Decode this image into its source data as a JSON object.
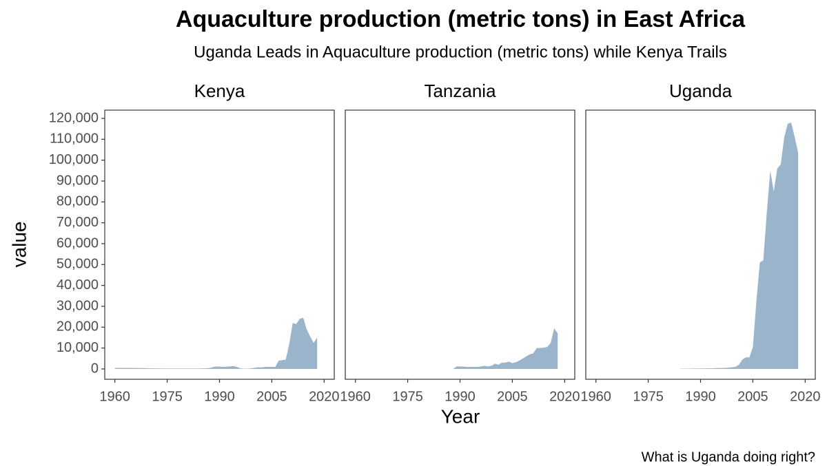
{
  "chart_data": {
    "type": "area",
    "title": "Aquaculture production (metric tons) in East Africa",
    "subtitle": "Uganda Leads in Aquaculture production (metric tons) while Kenya Trails",
    "caption": "What is Uganda doing right?",
    "x_label": "Year",
    "y_label": "value",
    "color": "#9ab4cc",
    "xlim": [
      1957.1,
      2022.9
    ],
    "ylim": [
      -4950,
      123950
    ],
    "xticks": [
      1960,
      1975,
      1990,
      2005,
      2020
    ],
    "yticks": [
      0,
      {
        "value": 10000,
        "label": "10,000"
      },
      {
        "value": 20000,
        "label": "20,000"
      },
      {
        "value": 30000,
        "label": "30,000"
      },
      {
        "value": 40000,
        "label": "40,000"
      },
      {
        "value": 50000,
        "label": "50,000"
      },
      {
        "value": 60000,
        "label": "60,000"
      },
      {
        "value": 70000,
        "label": "70,000"
      },
      {
        "value": 80000,
        "label": "80,000"
      },
      {
        "value": 90000,
        "label": "90,000"
      },
      {
        "value": 100000,
        "label": "100,000"
      },
      {
        "value": 110000,
        "label": "110,000"
      },
      {
        "value": 120000,
        "label": "120,000"
      }
    ],
    "x": [
      1960,
      1961,
      1962,
      1963,
      1964,
      1965,
      1966,
      1967,
      1968,
      1969,
      1970,
      1971,
      1972,
      1973,
      1974,
      1975,
      1976,
      1977,
      1978,
      1979,
      1980,
      1981,
      1982,
      1983,
      1984,
      1985,
      1986,
      1987,
      1988,
      1989,
      1990,
      1991,
      1992,
      1993,
      1994,
      1995,
      1996,
      1997,
      1998,
      1999,
      2000,
      2001,
      2002,
      2003,
      2004,
      2005,
      2006,
      2007,
      2008,
      2009,
      2010,
      2011,
      2012,
      2013,
      2014,
      2015,
      2016,
      2017,
      2018
    ],
    "facets": [
      {
        "name": "Kenya",
        "values": [
          500,
          500,
          500,
          500,
          500,
          450,
          450,
          400,
          400,
          350,
          300,
          300,
          250,
          250,
          200,
          200,
          200,
          200,
          200,
          200,
          200,
          200,
          200,
          200,
          200,
          300,
          300,
          400,
          800,
          1200,
          1100,
          1000,
          1100,
          1200,
          1400,
          1000,
          300,
          100,
          100,
          300,
          500,
          800,
          700,
          1000,
          1000,
          1000,
          1000,
          4000,
          4200,
          4500,
          12000,
          22000,
          21500,
          24000,
          24500,
          19000,
          15500,
          12500,
          15000
        ]
      },
      {
        "name": "Tanzania",
        "values": [
          null,
          null,
          null,
          null,
          null,
          null,
          null,
          null,
          null,
          null,
          null,
          null,
          null,
          null,
          null,
          null,
          null,
          null,
          null,
          null,
          null,
          null,
          null,
          null,
          null,
          null,
          null,
          null,
          0,
          1200,
          1200,
          1100,
          1000,
          1000,
          1000,
          1000,
          1200,
          1500,
          1200,
          1500,
          2500,
          2000,
          3000,
          3000,
          3500,
          2800,
          3200,
          4000,
          5000,
          6000,
          7000,
          7500,
          10000,
          10000,
          10200,
          10500,
          12500,
          19500,
          17000
        ]
      },
      {
        "name": "Uganda",
        "values": [
          null,
          null,
          null,
          null,
          null,
          null,
          null,
          null,
          null,
          null,
          null,
          null,
          null,
          null,
          null,
          null,
          null,
          null,
          null,
          null,
          null,
          null,
          null,
          null,
          100,
          100,
          150,
          150,
          200,
          200,
          250,
          250,
          300,
          300,
          350,
          400,
          450,
          500,
          600,
          800,
          1000,
          2000,
          4500,
          5500,
          5500,
          10500,
          32000,
          51000,
          52000,
          75000,
          95000,
          85000,
          96000,
          98000,
          111000,
          117500,
          118000,
          111000,
          103500
        ]
      }
    ]
  }
}
